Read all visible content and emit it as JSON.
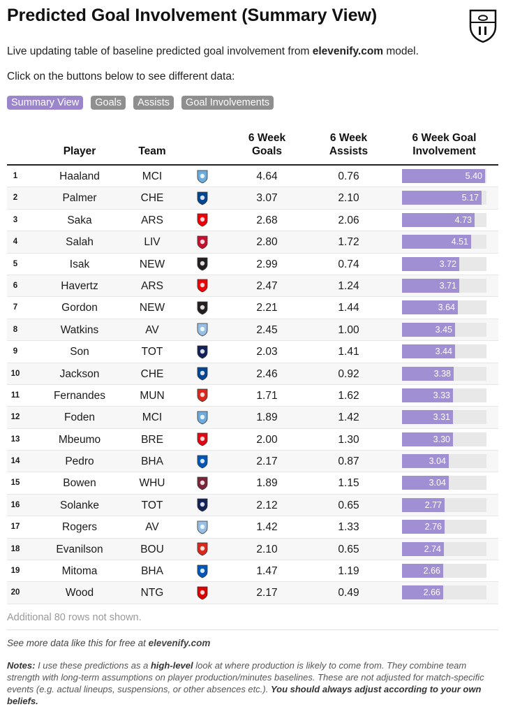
{
  "title": "Predicted Goal Involvement (Summary View)",
  "intro": {
    "prefix": "Live updating table of baseline predicted goal involvement from ",
    "site": "elevenify.com",
    "suffix": " model."
  },
  "hint": "Click on the buttons below to see different data:",
  "buttons": [
    "Summary View",
    "Goals",
    "Assists",
    "Goal Involvements"
  ],
  "columns": {
    "player": "Player",
    "team": "Team",
    "goals_l1": "6 Week",
    "goals_l2": "Goals",
    "assists_l1": "6 Week",
    "assists_l2": "Assists",
    "gi_l1": "6 Week Goal",
    "gi_l2": "Involvement"
  },
  "bar_max": 5.5,
  "rows": [
    {
      "rank": "1",
      "player": "Haaland",
      "team": "MCI",
      "goals": "4.64",
      "assists": "0.76",
      "gi": "5.40",
      "crest": "#6cabdd",
      "crest_icon": "mci-crest-icon"
    },
    {
      "rank": "2",
      "player": "Palmer",
      "team": "CHE",
      "goals": "3.07",
      "assists": "2.10",
      "gi": "5.17",
      "crest": "#034694",
      "crest_icon": "che-crest-icon"
    },
    {
      "rank": "3",
      "player": "Saka",
      "team": "ARS",
      "goals": "2.68",
      "assists": "2.06",
      "gi": "4.73",
      "crest": "#ef0107",
      "crest_icon": "ars-crest-icon"
    },
    {
      "rank": "4",
      "player": "Salah",
      "team": "LIV",
      "goals": "2.80",
      "assists": "1.72",
      "gi": "4.51",
      "crest": "#c8102e",
      "crest_icon": "liv-crest-icon"
    },
    {
      "rank": "5",
      "player": "Isak",
      "team": "NEW",
      "goals": "2.99",
      "assists": "0.74",
      "gi": "3.72",
      "crest": "#241f20",
      "crest_icon": "new-crest-icon"
    },
    {
      "rank": "6",
      "player": "Havertz",
      "team": "ARS",
      "goals": "2.47",
      "assists": "1.24",
      "gi": "3.71",
      "crest": "#ef0107",
      "crest_icon": "ars-crest-icon"
    },
    {
      "rank": "7",
      "player": "Gordon",
      "team": "NEW",
      "goals": "2.21",
      "assists": "1.44",
      "gi": "3.64",
      "crest": "#241f20",
      "crest_icon": "new-crest-icon"
    },
    {
      "rank": "8",
      "player": "Watkins",
      "team": "AV",
      "goals": "2.45",
      "assists": "1.00",
      "gi": "3.45",
      "crest": "#95bfe5",
      "crest_icon": "av-crest-icon"
    },
    {
      "rank": "9",
      "player": "Son",
      "team": "TOT",
      "goals": "2.03",
      "assists": "1.41",
      "gi": "3.44",
      "crest": "#132257",
      "crest_icon": "tot-crest-icon"
    },
    {
      "rank": "10",
      "player": "Jackson",
      "team": "CHE",
      "goals": "2.46",
      "assists": "0.92",
      "gi": "3.38",
      "crest": "#034694",
      "crest_icon": "che-crest-icon"
    },
    {
      "rank": "11",
      "player": "Fernandes",
      "team": "MUN",
      "goals": "1.71",
      "assists": "1.62",
      "gi": "3.33",
      "crest": "#da291c",
      "crest_icon": "mun-crest-icon"
    },
    {
      "rank": "12",
      "player": "Foden",
      "team": "MCI",
      "goals": "1.89",
      "assists": "1.42",
      "gi": "3.31",
      "crest": "#6cabdd",
      "crest_icon": "mci-crest-icon"
    },
    {
      "rank": "13",
      "player": "Mbeumo",
      "team": "BRE",
      "goals": "2.00",
      "assists": "1.30",
      "gi": "3.30",
      "crest": "#e30613",
      "crest_icon": "bre-crest-icon"
    },
    {
      "rank": "14",
      "player": "Pedro",
      "team": "BHA",
      "goals": "2.17",
      "assists": "0.87",
      "gi": "3.04",
      "crest": "#0057b8",
      "crest_icon": "bha-crest-icon"
    },
    {
      "rank": "15",
      "player": "Bowen",
      "team": "WHU",
      "goals": "1.89",
      "assists": "1.15",
      "gi": "3.04",
      "crest": "#7a263a",
      "crest_icon": "whu-crest-icon"
    },
    {
      "rank": "16",
      "player": "Solanke",
      "team": "TOT",
      "goals": "2.12",
      "assists": "0.65",
      "gi": "2.77",
      "crest": "#132257",
      "crest_icon": "tot-crest-icon"
    },
    {
      "rank": "17",
      "player": "Rogers",
      "team": "AV",
      "goals": "1.42",
      "assists": "1.33",
      "gi": "2.76",
      "crest": "#95bfe5",
      "crest_icon": "av-crest-icon"
    },
    {
      "rank": "18",
      "player": "Evanilson",
      "team": "BOU",
      "goals": "2.10",
      "assists": "0.65",
      "gi": "2.74",
      "crest": "#da291c",
      "crest_icon": "bou-crest-icon"
    },
    {
      "rank": "19",
      "player": "Mitoma",
      "team": "BHA",
      "goals": "1.47",
      "assists": "1.19",
      "gi": "2.66",
      "crest": "#0057b8",
      "crest_icon": "bha-crest-icon"
    },
    {
      "rank": "20",
      "player": "Wood",
      "team": "NTG",
      "goals": "2.17",
      "assists": "0.49",
      "gi": "2.66",
      "crest": "#dd0000",
      "crest_icon": "ntg-crest-icon"
    }
  ],
  "more_rows": "Additional 80 rows not shown.",
  "source": {
    "prefix": "See more data like this for free at ",
    "site": "elevenify.com"
  },
  "notes": {
    "label": "Notes:",
    "p1": " I use these predictions as a ",
    "emph": "high-level",
    "p2": " look at where production is likely to come from. They combine team strength with long-term assumptions on player production/minutes baselines. These are not adjusted for match-specific events (e.g. actual lineups, suspensions, or other absences etc.). ",
    "closing": "You should always adjust according to your own beliefs."
  },
  "colors": {
    "accent": "#9b86cc",
    "bar": "#a18fd3",
    "button_inactive": "#8f8f8f"
  }
}
